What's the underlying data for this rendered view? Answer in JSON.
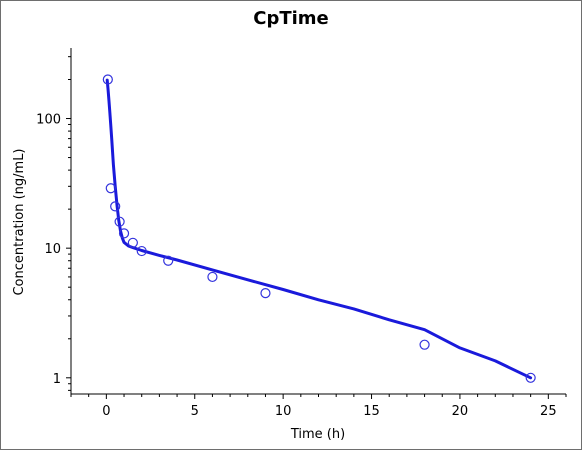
{
  "chart_data": {
    "type": "scatter",
    "title": "CpTime",
    "xlabel": "Time (h)",
    "ylabel": "Concentration (ng/mL)",
    "xlim": [
      -2,
      26
    ],
    "ylim": [
      0.75,
      350
    ],
    "y_scale": "log",
    "x_ticks": [
      0,
      5,
      10,
      15,
      20,
      25
    ],
    "x_tick_labels": [
      "0",
      "5",
      "10",
      "15",
      "20",
      "25"
    ],
    "y_ticks": [
      1,
      10,
      100
    ],
    "y_tick_labels": [
      "1",
      "10",
      "100"
    ],
    "grid": false,
    "legend": "none",
    "series": [
      {
        "kind": "observed",
        "marker": "open-circle",
        "color": "#3333dd",
        "x": [
          0.083,
          0.25,
          0.5,
          0.75,
          1,
          1.5,
          2,
          3.5,
          6,
          9,
          18,
          24
        ],
        "y": [
          200,
          29,
          21,
          16,
          13,
          11,
          9.5,
          8,
          6,
          4.5,
          1.8,
          1.0
        ]
      },
      {
        "kind": "fitted",
        "marker": "line",
        "color": "#1a1adb",
        "x": [
          0.05,
          0.1,
          0.15,
          0.2,
          0.25,
          0.3,
          0.4,
          0.5,
          0.6,
          0.7,
          0.8,
          0.9,
          1,
          1.25,
          1.5,
          2,
          3,
          4,
          6,
          8,
          10,
          12,
          14,
          16,
          18,
          20,
          22,
          24
        ],
        "y": [
          198,
          166,
          136,
          110,
          88,
          70,
          44,
          30,
          21.5,
          16.5,
          13.6,
          12,
          11.1,
          10.4,
          10.1,
          9.6,
          8.8,
          8.1,
          6.8,
          5.7,
          4.8,
          4.0,
          3.4,
          2.8,
          2.35,
          1.7,
          1.35,
          1.0
        ]
      }
    ]
  }
}
